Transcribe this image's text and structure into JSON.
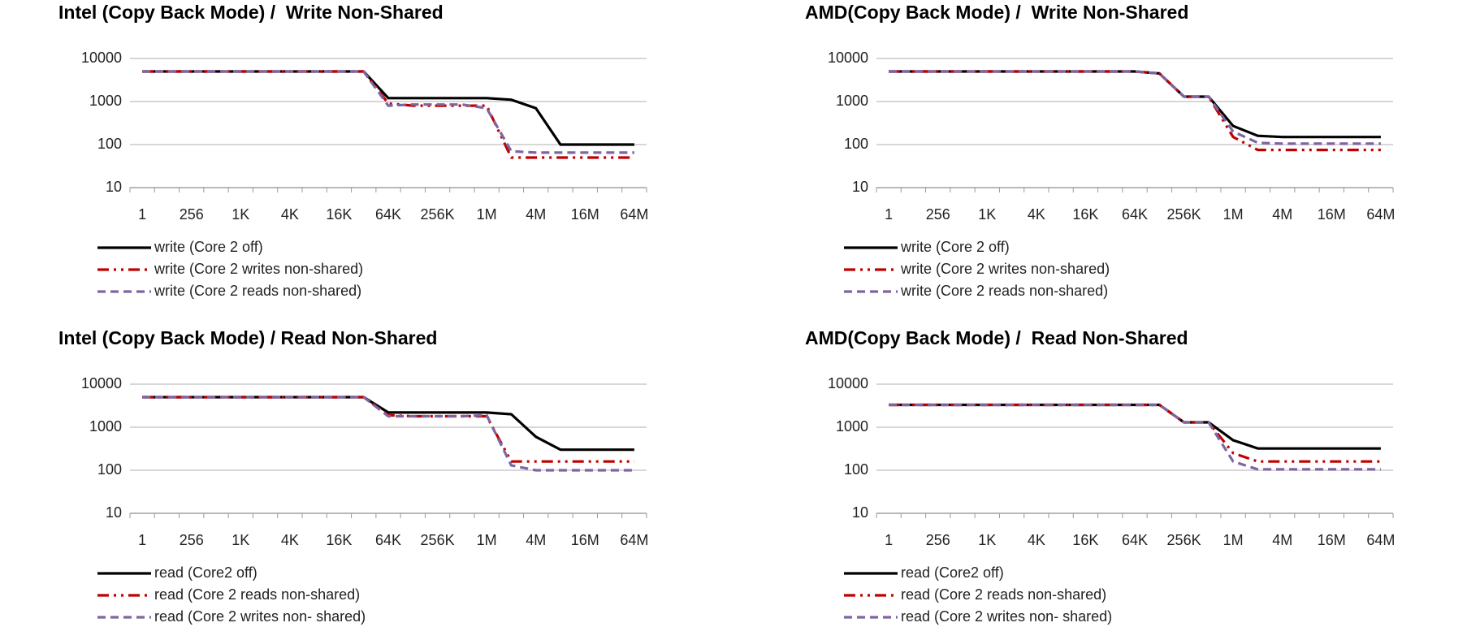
{
  "chart_data": [
    {
      "type": "line",
      "title": "Intel (Copy Back Mode) /  Write Non-Shared",
      "log_scale": true,
      "grid": true,
      "categories": [
        "1",
        null,
        "256",
        null,
        "1K",
        null,
        "4K",
        null,
        "16K",
        null,
        "64K",
        null,
        "256K",
        null,
        "1M",
        null,
        "4M",
        null,
        "16M",
        null,
        "64M"
      ],
      "ylim": [
        10,
        10000
      ],
      "yticks": [
        10,
        100,
        1000,
        10000
      ],
      "series": [
        {
          "name": "write (Core 2 off)",
          "color": "#000000",
          "values": [
            5000,
            5000,
            5000,
            5000,
            5000,
            5000,
            5000,
            5000,
            5000,
            5000,
            1200,
            1200,
            1200,
            1200,
            1200,
            1100,
            700,
            100,
            100,
            100,
            100
          ]
        },
        {
          "name": "write (Core 2 writes non-shared)",
          "color": "#c00000",
          "values": [
            5000,
            5000,
            5000,
            5000,
            5000,
            5000,
            5000,
            5000,
            5000,
            5000,
            900,
            800,
            800,
            800,
            800,
            50,
            50,
            50,
            50,
            50,
            50
          ]
        },
        {
          "name": "write (Core 2 reads non-shared)",
          "color": "#8064a2",
          "values": [
            5000,
            5000,
            5000,
            5000,
            5000,
            5000,
            5000,
            5000,
            5000,
            5000,
            800,
            850,
            850,
            850,
            700,
            70,
            65,
            65,
            65,
            65,
            65
          ]
        }
      ]
    },
    {
      "type": "line",
      "title": "AMD(Copy Back Mode) /  Write Non-Shared",
      "log_scale": true,
      "grid": true,
      "categories": [
        "1",
        null,
        "256",
        null,
        "1K",
        null,
        "4K",
        null,
        "16K",
        null,
        "64K",
        null,
        "256K",
        null,
        "1M",
        null,
        "4M",
        null,
        "16M",
        null,
        "64M"
      ],
      "ylim": [
        10,
        10000
      ],
      "yticks": [
        10,
        100,
        1000,
        10000
      ],
      "series": [
        {
          "name": "write (Core 2 off)",
          "color": "#000000",
          "values": [
            5000,
            5000,
            5000,
            5000,
            5000,
            5000,
            5000,
            5000,
            5000,
            5000,
            5000,
            4500,
            1300,
            1300,
            270,
            160,
            150,
            150,
            150,
            150,
            150
          ]
        },
        {
          "name": "write (Core 2 writes non-shared)",
          "color": "#c00000",
          "values": [
            5000,
            5000,
            5000,
            5000,
            5000,
            5000,
            5000,
            5000,
            5000,
            5000,
            5000,
            4500,
            1300,
            1300,
            150,
            75,
            75,
            75,
            75,
            75,
            75
          ]
        },
        {
          "name": "write (Core 2 reads non-shared)",
          "color": "#8064a2",
          "values": [
            5000,
            5000,
            5000,
            5000,
            5000,
            5000,
            5000,
            5000,
            5000,
            5000,
            5000,
            4500,
            1300,
            1300,
            200,
            110,
            105,
            105,
            105,
            105,
            105
          ]
        }
      ]
    },
    {
      "type": "line",
      "title": "Intel (Copy Back Mode) / Read Non-Shared",
      "log_scale": true,
      "grid": true,
      "categories": [
        "1",
        null,
        "256",
        null,
        "1K",
        null,
        "4K",
        null,
        "16K",
        null,
        "64K",
        null,
        "256K",
        null,
        "1M",
        null,
        "4M",
        null,
        "16M",
        null,
        "64M"
      ],
      "ylim": [
        10,
        10000
      ],
      "yticks": [
        10,
        100,
        1000,
        10000
      ],
      "series": [
        {
          "name": "read (Core2 off)",
          "color": "#000000",
          "values": [
            5000,
            5000,
            5000,
            5000,
            5000,
            5000,
            5000,
            5000,
            5000,
            5000,
            2200,
            2200,
            2200,
            2200,
            2200,
            2000,
            600,
            300,
            300,
            300,
            300
          ]
        },
        {
          "name": "read (Core 2 reads non-shared)",
          "color": "#c00000",
          "values": [
            5000,
            5000,
            5000,
            5000,
            5000,
            5000,
            5000,
            5000,
            5000,
            5000,
            1900,
            1800,
            1800,
            1800,
            1800,
            160,
            160,
            160,
            160,
            160,
            160
          ]
        },
        {
          "name": "read (Core 2 writes non- shared)",
          "color": "#8064a2",
          "values": [
            5000,
            5000,
            5000,
            5000,
            5000,
            5000,
            5000,
            5000,
            5000,
            5000,
            1800,
            1800,
            1800,
            1800,
            1900,
            130,
            100,
            100,
            100,
            100,
            100
          ]
        }
      ]
    },
    {
      "type": "line",
      "title": "AMD(Copy Back Mode) /  Read Non-Shared",
      "log_scale": true,
      "grid": true,
      "categories": [
        "1",
        null,
        "256",
        null,
        "1K",
        null,
        "4K",
        null,
        "16K",
        null,
        "64K",
        null,
        "256K",
        null,
        "1M",
        null,
        "4M",
        null,
        "16M",
        null,
        "64M"
      ],
      "ylim": [
        10,
        10000
      ],
      "yticks": [
        10,
        100,
        1000,
        10000
      ],
      "series": [
        {
          "name": "read (Core2 off)",
          "color": "#000000",
          "values": [
            3300,
            3300,
            3300,
            3300,
            3300,
            3300,
            3300,
            3300,
            3300,
            3300,
            3300,
            3300,
            1300,
            1300,
            500,
            320,
            320,
            320,
            320,
            320,
            320
          ]
        },
        {
          "name": "read (Core 2 reads non-shared)",
          "color": "#c00000",
          "values": [
            3300,
            3300,
            3300,
            3300,
            3300,
            3300,
            3300,
            3300,
            3300,
            3300,
            3300,
            3300,
            1300,
            1300,
            250,
            160,
            160,
            160,
            160,
            160,
            160
          ]
        },
        {
          "name": "read (Core 2 writes non- shared)",
          "color": "#8064a2",
          "values": [
            3300,
            3300,
            3300,
            3300,
            3300,
            3300,
            3300,
            3300,
            3300,
            3300,
            3300,
            3300,
            1300,
            1300,
            160,
            105,
            105,
            105,
            105,
            105,
            105
          ]
        }
      ]
    }
  ]
}
